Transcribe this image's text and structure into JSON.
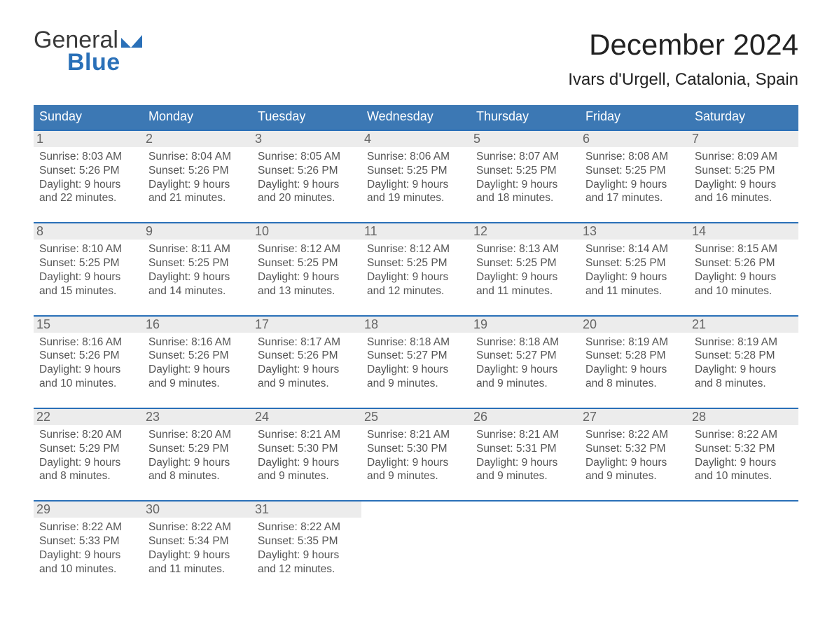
{
  "logo": {
    "line1": "General",
    "line2": "Blue"
  },
  "title": "December 2024",
  "location": "Ivars d'Urgell, Catalonia, Spain",
  "colors": {
    "header_blue": "#3c78b4",
    "accent_blue": "#2a70b8",
    "text": "#333333",
    "muted": "#555555",
    "daynum_bg": "#ececec",
    "daynum_fg": "#666666",
    "background": "#ffffff"
  },
  "typography": {
    "title_fontsize": 42,
    "location_fontsize": 24,
    "dow_fontsize": 18,
    "body_fontsize": 15.5,
    "font_family": "Arial"
  },
  "layout": {
    "columns": 7,
    "rows": 5,
    "row_top_border_color": "#2a70b8"
  },
  "days_of_week": [
    "Sunday",
    "Monday",
    "Tuesday",
    "Wednesday",
    "Thursday",
    "Friday",
    "Saturday"
  ],
  "weeks": [
    [
      {
        "n": "1",
        "sunrise": "8:03 AM",
        "sunset": "5:26 PM",
        "daylight": "9 hours and 22 minutes."
      },
      {
        "n": "2",
        "sunrise": "8:04 AM",
        "sunset": "5:26 PM",
        "daylight": "9 hours and 21 minutes."
      },
      {
        "n": "3",
        "sunrise": "8:05 AM",
        "sunset": "5:26 PM",
        "daylight": "9 hours and 20 minutes."
      },
      {
        "n": "4",
        "sunrise": "8:06 AM",
        "sunset": "5:25 PM",
        "daylight": "9 hours and 19 minutes."
      },
      {
        "n": "5",
        "sunrise": "8:07 AM",
        "sunset": "5:25 PM",
        "daylight": "9 hours and 18 minutes."
      },
      {
        "n": "6",
        "sunrise": "8:08 AM",
        "sunset": "5:25 PM",
        "daylight": "9 hours and 17 minutes."
      },
      {
        "n": "7",
        "sunrise": "8:09 AM",
        "sunset": "5:25 PM",
        "daylight": "9 hours and 16 minutes."
      }
    ],
    [
      {
        "n": "8",
        "sunrise": "8:10 AM",
        "sunset": "5:25 PM",
        "daylight": "9 hours and 15 minutes."
      },
      {
        "n": "9",
        "sunrise": "8:11 AM",
        "sunset": "5:25 PM",
        "daylight": "9 hours and 14 minutes."
      },
      {
        "n": "10",
        "sunrise": "8:12 AM",
        "sunset": "5:25 PM",
        "daylight": "9 hours and 13 minutes."
      },
      {
        "n": "11",
        "sunrise": "8:12 AM",
        "sunset": "5:25 PM",
        "daylight": "9 hours and 12 minutes."
      },
      {
        "n": "12",
        "sunrise": "8:13 AM",
        "sunset": "5:25 PM",
        "daylight": "9 hours and 11 minutes."
      },
      {
        "n": "13",
        "sunrise": "8:14 AM",
        "sunset": "5:25 PM",
        "daylight": "9 hours and 11 minutes."
      },
      {
        "n": "14",
        "sunrise": "8:15 AM",
        "sunset": "5:26 PM",
        "daylight": "9 hours and 10 minutes."
      }
    ],
    [
      {
        "n": "15",
        "sunrise": "8:16 AM",
        "sunset": "5:26 PM",
        "daylight": "9 hours and 10 minutes."
      },
      {
        "n": "16",
        "sunrise": "8:16 AM",
        "sunset": "5:26 PM",
        "daylight": "9 hours and 9 minutes."
      },
      {
        "n": "17",
        "sunrise": "8:17 AM",
        "sunset": "5:26 PM",
        "daylight": "9 hours and 9 minutes."
      },
      {
        "n": "18",
        "sunrise": "8:18 AM",
        "sunset": "5:27 PM",
        "daylight": "9 hours and 9 minutes."
      },
      {
        "n": "19",
        "sunrise": "8:18 AM",
        "sunset": "5:27 PM",
        "daylight": "9 hours and 9 minutes."
      },
      {
        "n": "20",
        "sunrise": "8:19 AM",
        "sunset": "5:28 PM",
        "daylight": "9 hours and 8 minutes."
      },
      {
        "n": "21",
        "sunrise": "8:19 AM",
        "sunset": "5:28 PM",
        "daylight": "9 hours and 8 minutes."
      }
    ],
    [
      {
        "n": "22",
        "sunrise": "8:20 AM",
        "sunset": "5:29 PM",
        "daylight": "9 hours and 8 minutes."
      },
      {
        "n": "23",
        "sunrise": "8:20 AM",
        "sunset": "5:29 PM",
        "daylight": "9 hours and 8 minutes."
      },
      {
        "n": "24",
        "sunrise": "8:21 AM",
        "sunset": "5:30 PM",
        "daylight": "9 hours and 9 minutes."
      },
      {
        "n": "25",
        "sunrise": "8:21 AM",
        "sunset": "5:30 PM",
        "daylight": "9 hours and 9 minutes."
      },
      {
        "n": "26",
        "sunrise": "8:21 AM",
        "sunset": "5:31 PM",
        "daylight": "9 hours and 9 minutes."
      },
      {
        "n": "27",
        "sunrise": "8:22 AM",
        "sunset": "5:32 PM",
        "daylight": "9 hours and 9 minutes."
      },
      {
        "n": "28",
        "sunrise": "8:22 AM",
        "sunset": "5:32 PM",
        "daylight": "9 hours and 10 minutes."
      }
    ],
    [
      {
        "n": "29",
        "sunrise": "8:22 AM",
        "sunset": "5:33 PM",
        "daylight": "9 hours and 10 minutes."
      },
      {
        "n": "30",
        "sunrise": "8:22 AM",
        "sunset": "5:34 PM",
        "daylight": "9 hours and 11 minutes."
      },
      {
        "n": "31",
        "sunrise": "8:22 AM",
        "sunset": "5:35 PM",
        "daylight": "9 hours and 12 minutes."
      },
      null,
      null,
      null,
      null
    ]
  ],
  "labels": {
    "sunrise_prefix": "Sunrise: ",
    "sunset_prefix": "Sunset: ",
    "daylight_prefix": "Daylight: "
  }
}
